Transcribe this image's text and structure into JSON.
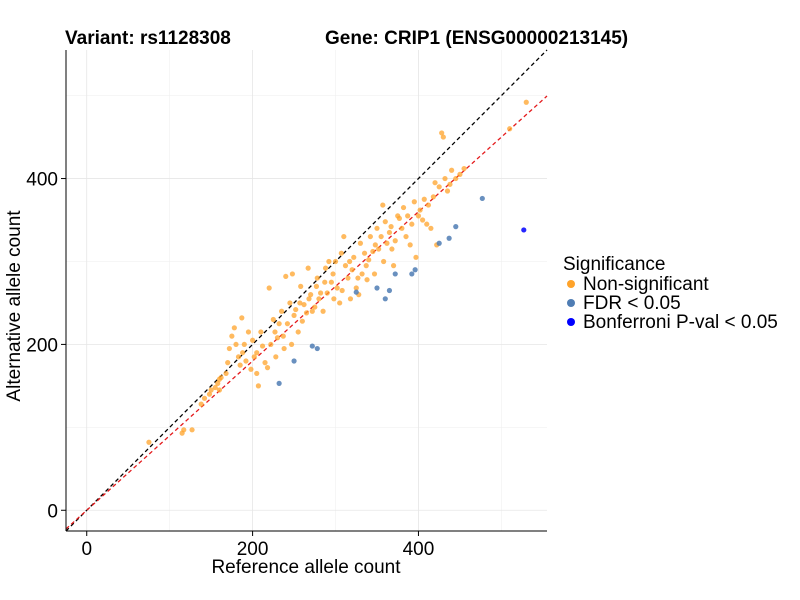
{
  "chart_data": {
    "type": "scatter",
    "title_left": "Variant: rs1128308",
    "title_right": "Gene: CRIP1 (ENSG00000213145)",
    "xlabel": "Reference allele count",
    "ylabel": "Alternative allele count",
    "xlim": [
      -25,
      555
    ],
    "ylim": [
      -25,
      555
    ],
    "x_ticks": [
      0,
      200,
      400
    ],
    "y_ticks": [
      0,
      200,
      400
    ],
    "grid": true,
    "reference_lines": [
      {
        "name": "identity",
        "slope": 1.0,
        "intercept": 0,
        "color": "#000000",
        "dash": "dashed"
      },
      {
        "name": "fit",
        "slope": 0.9,
        "intercept": 0,
        "color": "#e41a1c",
        "dash": "dashed"
      }
    ],
    "legend": {
      "title": "Significance",
      "position": "right",
      "entries": [
        {
          "label": "Non-significant",
          "color": "#FFA32A"
        },
        {
          "label": "FDR < 0.05",
          "color": "#4F7DB4"
        },
        {
          "label": "Bonferroni P-val < 0.05",
          "color": "#0000FF"
        }
      ]
    },
    "series": [
      {
        "name": "Non-significant",
        "color": "#FFA32A",
        "points": [
          [
            75,
            82
          ],
          [
            115,
            93
          ],
          [
            117,
            97
          ],
          [
            127,
            97
          ],
          [
            138,
            128
          ],
          [
            142,
            135
          ],
          [
            148,
            140
          ],
          [
            150,
            145
          ],
          [
            155,
            148
          ],
          [
            158,
            153
          ],
          [
            160,
            145
          ],
          [
            160,
            158
          ],
          [
            162,
            160
          ],
          [
            168,
            165
          ],
          [
            170,
            178
          ],
          [
            172,
            195
          ],
          [
            175,
            210
          ],
          [
            178,
            220
          ],
          [
            180,
            200
          ],
          [
            183,
            185
          ],
          [
            185,
            175
          ],
          [
            187,
            232
          ],
          [
            188,
            190
          ],
          [
            190,
            200
          ],
          [
            192,
            180
          ],
          [
            195,
            215
          ],
          [
            198,
            170
          ],
          [
            200,
            205
          ],
          [
            202,
            185
          ],
          [
            205,
            165
          ],
          [
            205,
            190
          ],
          [
            207,
            150
          ],
          [
            210,
            215
          ],
          [
            212,
            198
          ],
          [
            215,
            178
          ],
          [
            218,
            172
          ],
          [
            220,
            268
          ],
          [
            222,
            200
          ],
          [
            225,
            230
          ],
          [
            227,
            215
          ],
          [
            228,
            185
          ],
          [
            230,
            208
          ],
          [
            232,
            225
          ],
          [
            235,
            240
          ],
          [
            237,
            210
          ],
          [
            238,
            195
          ],
          [
            240,
            282
          ],
          [
            242,
            225
          ],
          [
            245,
            250
          ],
          [
            247,
            200
          ],
          [
            248,
            285
          ],
          [
            250,
            235
          ],
          [
            252,
            242
          ],
          [
            255,
            215
          ],
          [
            257,
            250
          ],
          [
            258,
            270
          ],
          [
            260,
            228
          ],
          [
            262,
            248
          ],
          [
            265,
            238
          ],
          [
            267,
            292
          ],
          [
            268,
            255
          ],
          [
            270,
            260
          ],
          [
            272,
            240
          ],
          [
            275,
            245
          ],
          [
            277,
            270
          ],
          [
            278,
            280
          ],
          [
            280,
            255
          ],
          [
            282,
            262
          ],
          [
            285,
            240
          ],
          [
            287,
            275
          ],
          [
            288,
            292
          ],
          [
            290,
            262
          ],
          [
            292,
            300
          ],
          [
            295,
            275
          ],
          [
            297,
            285
          ],
          [
            298,
            255
          ],
          [
            300,
            300
          ],
          [
            302,
            268
          ],
          [
            305,
            250
          ],
          [
            307,
            310
          ],
          [
            308,
            265
          ],
          [
            310,
            330
          ],
          [
            312,
            295
          ],
          [
            315,
            280
          ],
          [
            317,
            300
          ],
          [
            318,
            255
          ],
          [
            320,
            290
          ],
          [
            322,
            305
          ],
          [
            325,
            268
          ],
          [
            327,
            280
          ],
          [
            328,
            260
          ],
          [
            330,
            322
          ],
          [
            332,
            285
          ],
          [
            335,
            310
          ],
          [
            337,
            295
          ],
          [
            338,
            278
          ],
          [
            340,
            302
          ],
          [
            342,
            330
          ],
          [
            345,
            312
          ],
          [
            347,
            285
          ],
          [
            348,
            320
          ],
          [
            350,
            340
          ],
          [
            352,
            315
          ],
          [
            355,
            330
          ],
          [
            357,
            368
          ],
          [
            358,
            300
          ],
          [
            360,
            348
          ],
          [
            362,
            322
          ],
          [
            365,
            335
          ],
          [
            367,
            342
          ],
          [
            368,
            315
          ],
          [
            370,
            295
          ],
          [
            372,
            325
          ],
          [
            375,
            355
          ],
          [
            377,
            352
          ],
          [
            380,
            340
          ],
          [
            382,
            365
          ],
          [
            385,
            330
          ],
          [
            387,
            355
          ],
          [
            390,
            320
          ],
          [
            392,
            345
          ],
          [
            395,
            372
          ],
          [
            397,
            305
          ],
          [
            400,
            355
          ],
          [
            402,
            362
          ],
          [
            405,
            350
          ],
          [
            407,
            375
          ],
          [
            410,
            345
          ],
          [
            412,
            368
          ],
          [
            415,
            340
          ],
          [
            418,
            378
          ],
          [
            420,
            395
          ],
          [
            422,
            320
          ],
          [
            425,
            390
          ],
          [
            428,
            455
          ],
          [
            430,
            450
          ],
          [
            432,
            400
          ],
          [
            435,
            385
          ],
          [
            438,
            393
          ],
          [
            440,
            410
          ],
          [
            445,
            400
          ],
          [
            450,
            405
          ],
          [
            455,
            412
          ],
          [
            510,
            460
          ],
          [
            530,
            492
          ]
        ]
      },
      {
        "name": "FDR < 0.05",
        "color": "#4F7DB4",
        "points": [
          [
            232,
            153
          ],
          [
            250,
            180
          ],
          [
            272,
            198
          ],
          [
            278,
            195
          ],
          [
            325,
            263
          ],
          [
            350,
            268
          ],
          [
            360,
            255
          ],
          [
            365,
            265
          ],
          [
            372,
            285
          ],
          [
            392,
            285
          ],
          [
            396,
            290
          ],
          [
            425,
            322
          ],
          [
            437,
            328
          ],
          [
            445,
            342
          ],
          [
            477,
            376
          ]
        ]
      },
      {
        "name": "Bonferroni P-val < 0.05",
        "color": "#0000FF",
        "points": [
          [
            527,
            338
          ]
        ]
      }
    ]
  }
}
